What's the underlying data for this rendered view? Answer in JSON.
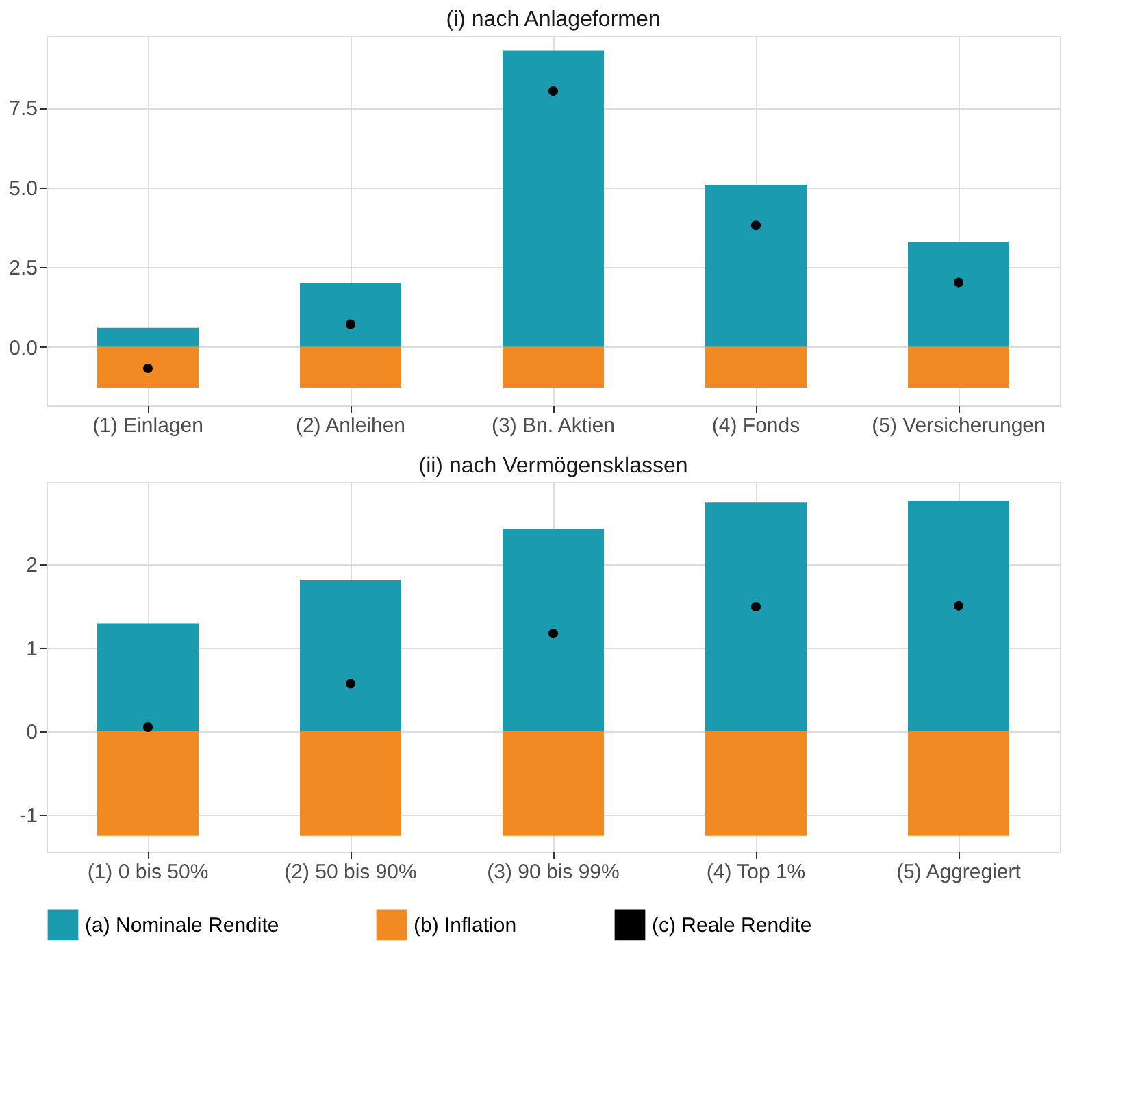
{
  "chart_data": [
    {
      "type": "bar",
      "title": "(i) nach Anlageformen",
      "categories": [
        "(1) Einlagen",
        "(2) Anleihen",
        "(3) Bn. Aktien",
        "(4) Fonds",
        "(5) Versicherungen"
      ],
      "stacked": true,
      "series": [
        {
          "name": "(a) Nominale Rendite",
          "color": "#1a9bb0",
          "values": [
            0.6,
            2.0,
            9.3,
            5.08,
            3.3
          ]
        },
        {
          "name": "(b) Inflation",
          "color": "#f28a24",
          "values": [
            -1.27,
            -1.27,
            -1.27,
            -1.27,
            -1.27
          ]
        },
        {
          "name": "(c) Reale Rendite",
          "type": "scatter",
          "color": "#000000",
          "values": [
            -0.67,
            0.71,
            8.02,
            3.81,
            2.02
          ]
        }
      ],
      "ylim": [
        -1.83,
        9.76
      ],
      "yticks": [
        {
          "value": 0,
          "label": "0.0"
        },
        2.5,
        {
          "value": 5,
          "label": "5.0"
        },
        7.5
      ],
      "grid": true,
      "legend": "bottom"
    },
    {
      "type": "bar",
      "title": "(ii) nach Vermögensklassen",
      "categories": [
        "(1) 0 bis 50%",
        "(2) 50 bis 90%",
        "(3) 90 bis 99%",
        "(4) Top 1%",
        "(5) Aggregiert"
      ],
      "stacked": true,
      "series": [
        {
          "name": "(a) Nominale Rendite",
          "color": "#1a9bb0",
          "values": [
            1.29,
            1.81,
            2.42,
            2.74,
            2.75
          ]
        },
        {
          "name": "(b) Inflation",
          "color": "#f28a24",
          "values": [
            -1.25,
            -1.25,
            -1.25,
            -1.25,
            -1.25
          ]
        },
        {
          "name": "(c) Reale Rendite",
          "type": "scatter",
          "color": "#000000",
          "values": [
            0.05,
            0.57,
            1.17,
            1.49,
            1.5
          ]
        }
      ],
      "ylim": [
        -1.44,
        2.98
      ],
      "yticks": [
        -1,
        0,
        1,
        2
      ],
      "grid": true,
      "legend": "bottom"
    }
  ]
}
